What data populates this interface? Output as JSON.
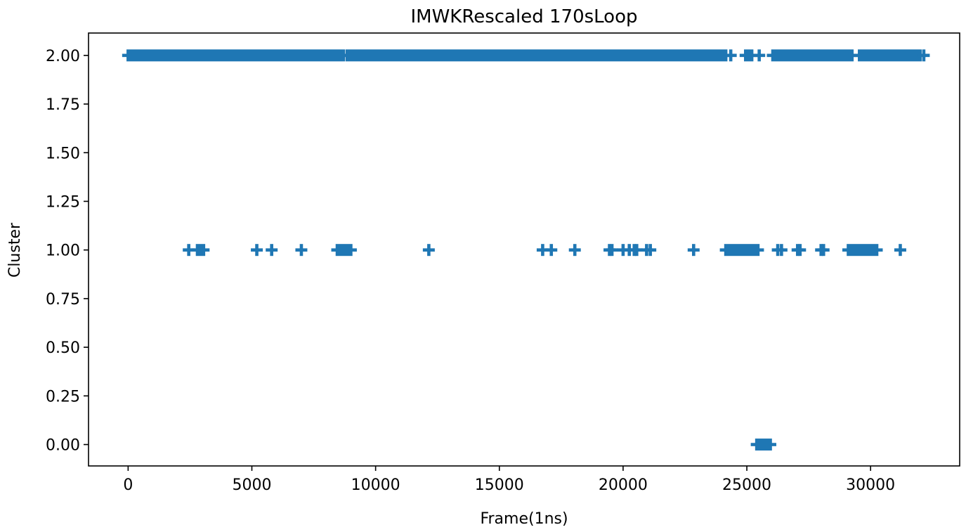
{
  "chart_data": {
    "type": "scatter",
    "title": "IMWKRescaled 170sLoop",
    "xlabel": "Frame(1ns)",
    "ylabel": "Cluster",
    "xlim": [
      -1600,
      33600
    ],
    "ylim": [
      -0.11,
      2.115
    ],
    "x_ticks": [
      0,
      5000,
      10000,
      15000,
      20000,
      25000,
      30000
    ],
    "x_tick_labels": [
      "0",
      "5000",
      "10000",
      "15000",
      "20000",
      "25000",
      "30000"
    ],
    "y_ticks": [
      0,
      0.25,
      0.5,
      0.75,
      1.0,
      1.25,
      1.5,
      1.75,
      2.0
    ],
    "y_tick_labels": [
      "0.00",
      "0.25",
      "0.50",
      "0.75",
      "1.00",
      "1.25",
      "1.50",
      "1.75",
      "2.00"
    ],
    "grid": false,
    "marker": "plus",
    "color": "#1f77b4",
    "series": [
      {
        "cluster": 2,
        "x_ranges": [
          [
            0,
            8700
          ],
          [
            8850,
            24150
          ],
          [
            24950,
            25200
          ],
          [
            26050,
            29250
          ],
          [
            29550,
            32000
          ]
        ],
        "x_points": [
          24350,
          25500,
          32150
        ]
      },
      {
        "cluster": 1,
        "x_ranges": [
          [
            2800,
            3050
          ],
          [
            8450,
            9000
          ],
          [
            24150,
            25450
          ],
          [
            29100,
            30250
          ]
        ],
        "x_points": [
          2450,
          5200,
          5800,
          7000,
          12150,
          16750,
          17100,
          18050,
          19450,
          19550,
          20000,
          20250,
          20450,
          20550,
          20950,
          21100,
          22850,
          26250,
          26400,
          27050,
          27150,
          28000,
          28100,
          31200
        ]
      },
      {
        "cluster": 0,
        "x_ranges": [
          [
            25400,
            25950
          ]
        ],
        "x_points": []
      }
    ]
  }
}
